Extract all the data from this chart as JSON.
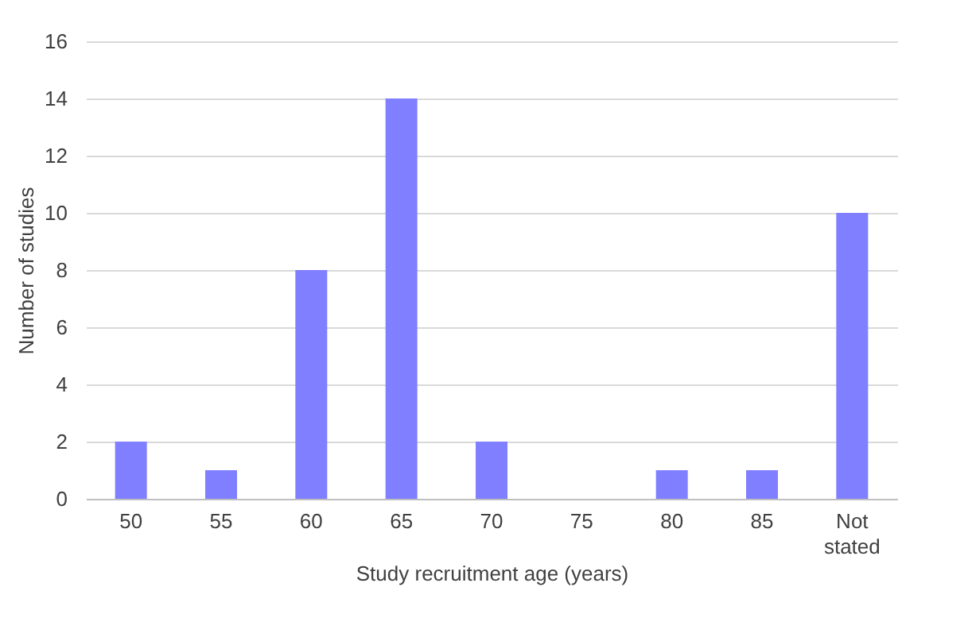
{
  "chart_data": {
    "type": "bar",
    "xlabel": "Study recruitment age (years)",
    "ylabel": "Number of studies",
    "categories": [
      "50",
      "55",
      "60",
      "65",
      "70",
      "75",
      "80",
      "85",
      "Not stated"
    ],
    "values": [
      2,
      1,
      8,
      14,
      2,
      0,
      1,
      1,
      10
    ],
    "color": "#7f7fff",
    "ylim": [
      0,
      16
    ],
    "yticks": [
      0,
      2,
      4,
      6,
      8,
      10,
      12,
      14,
      16
    ],
    "grid": "y"
  }
}
